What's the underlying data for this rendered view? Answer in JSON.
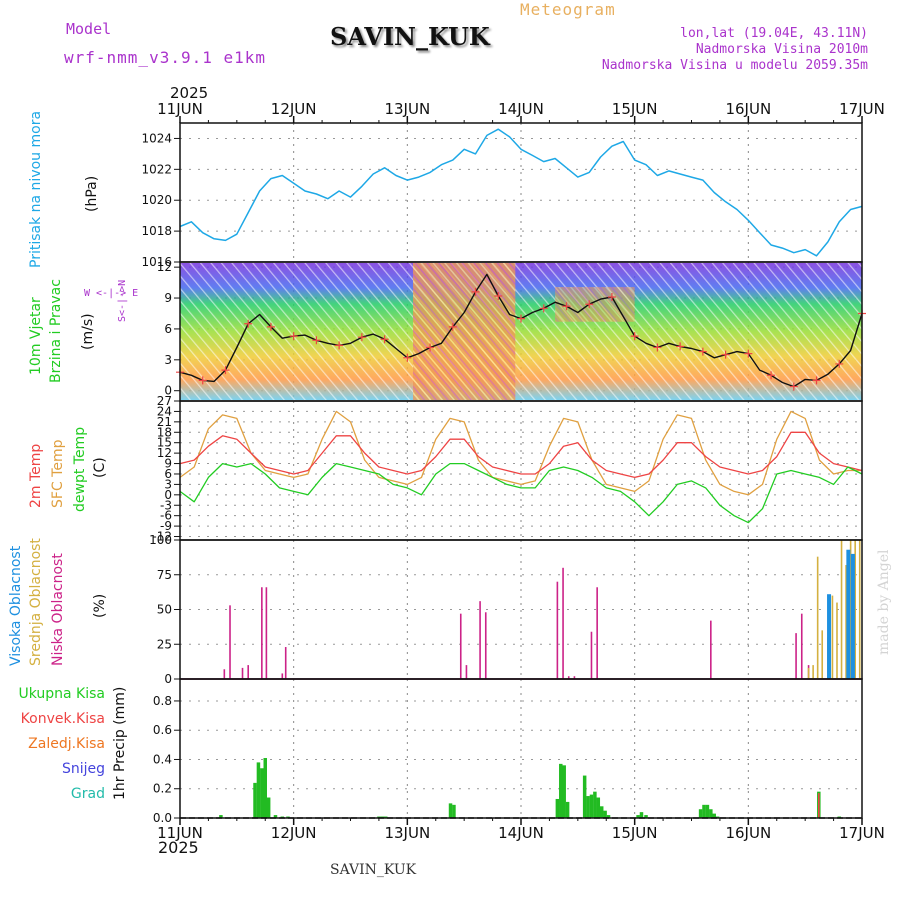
{
  "header": {
    "model_label": "Model",
    "model_name": "wrf-nmm_v3.9.1 e1km",
    "station": "SAVIN_KUK",
    "title": "Meteogram",
    "lonlat": "lon,lat (19.04E, 43.11N)",
    "altitude": "Nadmorska Visina 2010m",
    "model_altitude": "Nadmorska Visina u modelu 2059.35m",
    "year_top": "2025",
    "year_bottom": "2025",
    "footer_station": "SAVIN_KUK",
    "credit": "made by Angel"
  },
  "axis_days": [
    "11JUN",
    "12JUN",
    "13JUN",
    "14JUN",
    "15JUN",
    "16JUN",
    "17JUN"
  ],
  "panel_labels": {
    "pressure": {
      "name": "Pritisak na nivou mora",
      "unit": "(hPa)"
    },
    "wind": {
      "name1": "10m Vjetar",
      "name2": "Brzina i Pravac",
      "unit": "(m/s)",
      "compass_we": "W <-|-> E",
      "compass_sn": "S<-|->N"
    },
    "temp": {
      "name1": "2m Temp",
      "name2": "SFC Temp",
      "name3": "dewpt Temp",
      "unit": "(C)"
    },
    "cloud": {
      "name1": "Visoka Oblacnost",
      "name2": "Srednja Oblacnost",
      "name3": "Niska Oblacnost",
      "unit": "(%)"
    },
    "precip": {
      "unit": "1hr Precip (mm)",
      "legend": [
        "Ukupna Kisa",
        "Konvek.Kisa",
        "Zaledj.Kisa",
        "Snijeg",
        "Grad"
      ]
    }
  },
  "colors": {
    "pressure": "#1ea8e6",
    "t2m": "#ee4444",
    "tsfc": "#e0a040",
    "dewpt": "#22cc22",
    "cloud_high": "#1e90e0",
    "cloud_mid": "#d4b040",
    "cloud_low": "#cc2288",
    "precip_total": "#22bb22",
    "precip_conv": "#ee4444",
    "precip_frz": "#ee7722",
    "snow": "#4444dd",
    "grad": "#22bbaa",
    "header_purple": "#aa33cc",
    "meteogram_orange": "#e8b060"
  },
  "chart_data": [
    {
      "type": "line",
      "panel": "pressure",
      "ylabel": "(hPa)",
      "ylim": [
        1016,
        1025
      ],
      "yticks": [
        1016,
        1018,
        1020,
        1022,
        1024
      ],
      "x_unit": "days from 11JUN 00",
      "series": [
        {
          "name": "Pritisak na nivou mora",
          "x": [
            0,
            0.1,
            0.2,
            0.3,
            0.4,
            0.5,
            0.6,
            0.7,
            0.8,
            0.9,
            1.0,
            1.1,
            1.2,
            1.3,
            1.4,
            1.5,
            1.6,
            1.7,
            1.8,
            1.9,
            2.0,
            2.1,
            2.2,
            2.3,
            2.4,
            2.5,
            2.6,
            2.7,
            2.8,
            2.9,
            3.0,
            3.1,
            3.2,
            3.3,
            3.4,
            3.5,
            3.6,
            3.7,
            3.8,
            3.9,
            4.0,
            4.1,
            4.2,
            4.3,
            4.4,
            4.5,
            4.6,
            4.7,
            4.8,
            4.9,
            5.0,
            5.1,
            5.2,
            5.3,
            5.4,
            5.5,
            5.6,
            5.7,
            5.8,
            5.9,
            6.0
          ],
          "values": [
            1018.3,
            1018.6,
            1017.9,
            1017.5,
            1017.4,
            1017.8,
            1019.2,
            1020.6,
            1021.4,
            1021.6,
            1021.1,
            1020.6,
            1020.4,
            1020.1,
            1020.6,
            1020.2,
            1020.9,
            1021.7,
            1022.1,
            1021.6,
            1021.3,
            1021.5,
            1021.8,
            1022.3,
            1022.6,
            1023.3,
            1023.0,
            1024.2,
            1024.6,
            1024.1,
            1023.3,
            1022.9,
            1022.5,
            1022.7,
            1022.1,
            1021.5,
            1021.8,
            1022.8,
            1023.5,
            1023.8,
            1022.6,
            1022.3,
            1021.6,
            1021.9,
            1021.7,
            1021.5,
            1021.3,
            1020.5,
            1019.9,
            1019.4,
            1018.7,
            1017.9,
            1017.1,
            1016.9,
            1016.6,
            1016.8,
            1016.4,
            1017.3,
            1018.6,
            1019.4,
            1019.6
          ]
        }
      ]
    },
    {
      "type": "line",
      "panel": "wind",
      "ylabel": "(m/s)",
      "ylim": [
        -1,
        12.5
      ],
      "yticks": [
        0,
        3,
        6,
        9,
        12
      ],
      "series": [
        {
          "name": "10m Vjetar",
          "x": [
            0,
            0.1,
            0.2,
            0.3,
            0.4,
            0.5,
            0.6,
            0.7,
            0.8,
            0.9,
            1.0,
            1.1,
            1.2,
            1.3,
            1.4,
            1.5,
            1.6,
            1.7,
            1.8,
            1.9,
            2.0,
            2.1,
            2.2,
            2.3,
            2.4,
            2.5,
            2.6,
            2.7,
            2.8,
            2.9,
            3.0,
            3.1,
            3.2,
            3.3,
            3.4,
            3.5,
            3.6,
            3.7,
            3.8,
            3.9,
            4.0,
            4.1,
            4.2,
            4.3,
            4.4,
            4.5,
            4.6,
            4.7,
            4.8,
            4.9,
            5.0,
            5.1,
            5.2,
            5.3,
            5.4,
            5.5,
            5.6,
            5.7,
            5.8,
            5.9,
            6.0
          ],
          "values": [
            1.8,
            1.5,
            1.0,
            0.9,
            2.0,
            4.2,
            6.5,
            7.4,
            6.2,
            5.1,
            5.3,
            5.4,
            4.9,
            4.6,
            4.4,
            4.6,
            5.2,
            5.5,
            5.0,
            4.1,
            3.2,
            3.6,
            4.2,
            4.6,
            6.2,
            7.6,
            9.6,
            11.3,
            9.2,
            7.4,
            7.0,
            7.6,
            8.0,
            8.6,
            8.2,
            7.6,
            8.4,
            8.9,
            9.1,
            7.2,
            5.3,
            4.6,
            4.2,
            4.6,
            4.3,
            4.1,
            3.8,
            3.2,
            3.5,
            3.8,
            3.6,
            2.0,
            1.5,
            0.8,
            0.4,
            1.1,
            1.0,
            1.6,
            2.6,
            3.9,
            7.5
          ]
        }
      ]
    },
    {
      "type": "line",
      "panel": "temperature",
      "ylabel": "(C)",
      "ylim": [
        -13,
        27
      ],
      "yticks": [
        -12,
        -9,
        -6,
        -3,
        0,
        3,
        6,
        9,
        12,
        15,
        18,
        21,
        24,
        27
      ],
      "series": [
        {
          "name": "2m Temp",
          "x": [
            0,
            0.125,
            0.25,
            0.375,
            0.5,
            0.625,
            0.75,
            0.875,
            1.0,
            1.125,
            1.25,
            1.375,
            1.5,
            1.625,
            1.75,
            1.875,
            2.0,
            2.125,
            2.25,
            2.375,
            2.5,
            2.625,
            2.75,
            2.875,
            3.0,
            3.125,
            3.25,
            3.375,
            3.5,
            3.625,
            3.75,
            3.875,
            4.0,
            4.125,
            4.25,
            4.375,
            4.5,
            4.625,
            4.75,
            4.875,
            5.0,
            5.125,
            5.25,
            5.375,
            5.5,
            5.625,
            5.75,
            5.875,
            6.0
          ],
          "values": [
            9,
            10,
            14,
            17,
            16,
            12,
            8,
            7,
            6,
            7,
            12,
            17,
            17,
            12,
            8,
            7,
            6,
            7,
            11,
            16,
            16,
            11,
            8,
            7,
            6,
            6,
            9,
            14,
            15,
            10,
            7,
            6,
            5,
            6,
            10,
            15,
            15,
            11,
            8,
            7,
            6,
            7,
            11,
            18,
            18,
            12,
            9,
            8,
            7
          ]
        },
        {
          "name": "SFC Temp",
          "x": [
            0,
            0.125,
            0.25,
            0.375,
            0.5,
            0.625,
            0.75,
            0.875,
            1.0,
            1.125,
            1.25,
            1.375,
            1.5,
            1.625,
            1.75,
            1.875,
            2.0,
            2.125,
            2.25,
            2.375,
            2.5,
            2.625,
            2.75,
            2.875,
            3.0,
            3.125,
            3.25,
            3.375,
            3.5,
            3.625,
            3.75,
            3.875,
            4.0,
            4.125,
            4.25,
            4.375,
            4.5,
            4.625,
            4.75,
            4.875,
            5.0,
            5.125,
            5.25,
            5.375,
            5.5,
            5.625,
            5.75,
            5.875,
            6.0
          ],
          "values": [
            5,
            8,
            19,
            23,
            22,
            12,
            7,
            6,
            5,
            6,
            16,
            24,
            21,
            10,
            5,
            4,
            3,
            5,
            16,
            22,
            21,
            10,
            5,
            4,
            3,
            4,
            14,
            22,
            21,
            10,
            3,
            2,
            1,
            4,
            16,
            23,
            22,
            10,
            3,
            1,
            0,
            3,
            16,
            24,
            22,
            10,
            6,
            7,
            7
          ]
        },
        {
          "name": "dewpt Temp",
          "x": [
            0,
            0.125,
            0.25,
            0.375,
            0.5,
            0.625,
            0.75,
            0.875,
            1.0,
            1.125,
            1.25,
            1.375,
            1.5,
            1.625,
            1.75,
            1.875,
            2.0,
            2.125,
            2.25,
            2.375,
            2.5,
            2.625,
            2.75,
            2.875,
            3.0,
            3.125,
            3.25,
            3.375,
            3.5,
            3.625,
            3.75,
            3.875,
            4.0,
            4.125,
            4.25,
            4.375,
            4.5,
            4.625,
            4.75,
            4.875,
            5.0,
            5.125,
            5.25,
            5.375,
            5.5,
            5.625,
            5.75,
            5.875,
            6.0
          ],
          "values": [
            1,
            -2,
            5,
            9,
            8,
            9,
            6,
            2,
            1,
            0,
            5,
            9,
            8,
            7,
            6,
            3,
            2,
            0,
            6,
            9,
            9,
            7,
            5,
            3,
            2,
            2,
            7,
            8,
            7,
            5,
            2,
            1,
            -2,
            -6,
            -2,
            3,
            4,
            2,
            -3,
            -6,
            -8,
            -4,
            6,
            7,
            6,
            5,
            3,
            8,
            6
          ]
        }
      ]
    },
    {
      "type": "bar",
      "panel": "cloud",
      "ylabel": "(%)",
      "ylim": [
        0,
        100
      ],
      "yticks": [
        0,
        25,
        50,
        75,
        100
      ],
      "series": [
        {
          "name": "Niska Oblacnost",
          "x": [
            0.39,
            0.44,
            0.55,
            0.6,
            0.72,
            0.76,
            0.9,
            0.93,
            2.47,
            2.52,
            2.64,
            2.69,
            3.32,
            3.37,
            3.42,
            3.47,
            3.62,
            3.67,
            4.67,
            5.42,
            5.47,
            5.53
          ],
          "values": [
            7,
            53,
            8,
            10,
            66,
            66,
            4,
            23,
            47,
            10,
            56,
            48,
            70,
            80,
            2,
            2,
            34,
            66,
            42,
            33,
            47,
            10
          ]
        },
        {
          "name": "Srednja Oblacnost",
          "x": [
            5.53,
            5.57,
            5.61,
            5.65,
            5.7,
            5.74,
            5.78,
            5.82,
            5.86,
            5.9,
            5.94,
            5.98
          ],
          "values": [
            8,
            10,
            88,
            35,
            30,
            60,
            55,
            100,
            82,
            100,
            100,
            100
          ]
        },
        {
          "name": "Visoka Oblacnost",
          "x": [
            5.71,
            5.88,
            5.92
          ],
          "values": [
            61,
            93,
            90
          ]
        }
      ]
    },
    {
      "type": "bar",
      "panel": "precipitation",
      "ylabel": "1hr Precip (mm)",
      "ylim": [
        0,
        0.95
      ],
      "yticks": [
        0.0,
        0.2,
        0.4,
        0.6,
        0.8
      ],
      "series": [
        {
          "name": "Ukupna Kisa",
          "x": [
            0.36,
            0.66,
            0.69,
            0.72,
            0.75,
            0.78,
            0.84,
            0.9,
            0.95,
            1.75,
            1.78,
            1.81,
            2.38,
            2.41,
            3.32,
            3.35,
            3.38,
            3.41,
            3.56,
            3.59,
            3.62,
            3.65,
            3.68,
            3.71,
            3.74,
            3.77,
            4.03,
            4.06,
            4.1,
            4.58,
            4.61,
            4.64,
            4.67,
            4.7,
            4.73,
            5.62,
            5.8
          ],
          "values": [
            0.02,
            0.24,
            0.38,
            0.34,
            0.41,
            0.14,
            0.02,
            0.01,
            0.01,
            0.01,
            0.01,
            0.01,
            0.1,
            0.09,
            0.13,
            0.37,
            0.36,
            0.11,
            0.29,
            0.15,
            0.16,
            0.18,
            0.14,
            0.08,
            0.05,
            0.02,
            0.02,
            0.04,
            0.02,
            0.06,
            0.09,
            0.09,
            0.06,
            0.03,
            0.01,
            0.18,
            0.01
          ]
        },
        {
          "name": "Konvek.Kisa",
          "x": [
            5.62
          ],
          "values": [
            0.17
          ]
        }
      ]
    }
  ]
}
